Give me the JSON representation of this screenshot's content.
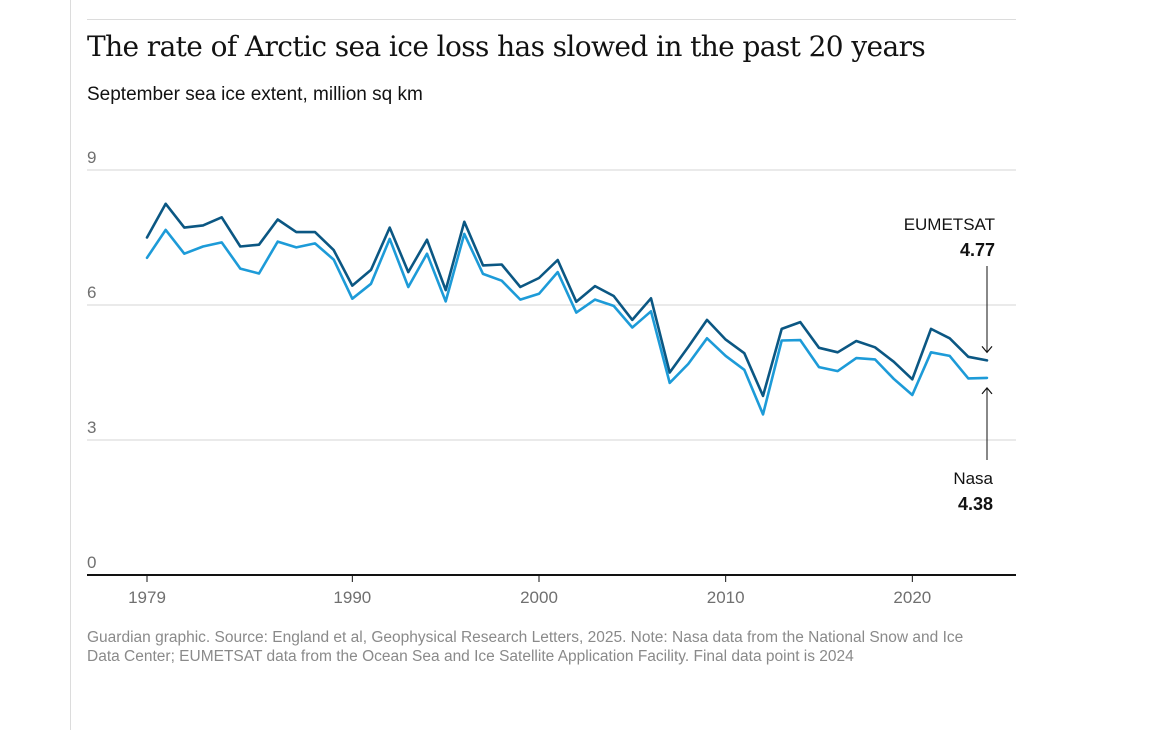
{
  "title": "The rate of Arctic sea ice loss has slowed in the past 20 years",
  "subtitle": "September sea ice extent, million sq km",
  "footnote": "Guardian graphic. Source: England et al, Geophysical Research Letters, 2025. Note: Nasa data from the National Snow and Ice Data Center; EUMETSAT data from the Ocean Sea and Ice Satellite Application Facility. Final data point is 2024",
  "colors": {
    "eumetsat": "#0b5783",
    "nasa": "#1d9bd8",
    "grid": "#d6d6d6",
    "axis": "#121212"
  },
  "chart_data": {
    "type": "line",
    "title": "The rate of Arctic sea ice loss has slowed in the past 20 years",
    "subtitle": "September sea ice extent, million sq km",
    "xlim": [
      1979,
      2024
    ],
    "ylim": [
      0,
      9
    ],
    "yticks": [
      0,
      3,
      6,
      9
    ],
    "xticks": [
      1979,
      1990,
      2000,
      2010,
      2020
    ],
    "grid": true,
    "x": [
      1979,
      1980,
      1981,
      1982,
      1983,
      1984,
      1985,
      1986,
      1987,
      1988,
      1989,
      1990,
      1991,
      1992,
      1993,
      1994,
      1995,
      1996,
      1997,
      1998,
      1999,
      2000,
      2001,
      2002,
      2003,
      2004,
      2005,
      2006,
      2007,
      2008,
      2009,
      2010,
      2011,
      2012,
      2013,
      2014,
      2015,
      2016,
      2017,
      2018,
      2019,
      2020,
      2021,
      2022,
      2023,
      2024
    ],
    "series": [
      {
        "name": "EUMETSAT",
        "end_label": "4.77",
        "values": [
          7.5,
          8.25,
          7.72,
          7.77,
          7.95,
          7.3,
          7.34,
          7.9,
          7.62,
          7.62,
          7.22,
          6.43,
          6.78,
          7.72,
          6.73,
          7.45,
          6.33,
          7.85,
          6.88,
          6.9,
          6.4,
          6.6,
          7.0,
          6.07,
          6.42,
          6.2,
          5.67,
          6.15,
          4.5,
          5.07,
          5.67,
          5.23,
          4.93,
          3.98,
          5.47,
          5.62,
          5.05,
          4.95,
          5.2,
          5.06,
          4.74,
          4.35,
          5.47,
          5.26,
          4.85,
          4.77
        ]
      },
      {
        "name": "Nasa",
        "end_label": "4.38",
        "values": [
          7.05,
          7.67,
          7.14,
          7.3,
          7.39,
          6.81,
          6.7,
          7.41,
          7.28,
          7.37,
          7.01,
          6.14,
          6.47,
          7.47,
          6.4,
          7.14,
          6.08,
          7.58,
          6.69,
          6.54,
          6.12,
          6.25,
          6.73,
          5.83,
          6.12,
          5.98,
          5.5,
          5.86,
          4.27,
          4.69,
          5.26,
          4.87,
          4.56,
          3.57,
          5.21,
          5.22,
          4.62,
          4.53,
          4.82,
          4.79,
          4.36,
          4.0,
          4.95,
          4.87,
          4.37,
          4.38
        ]
      }
    ]
  }
}
